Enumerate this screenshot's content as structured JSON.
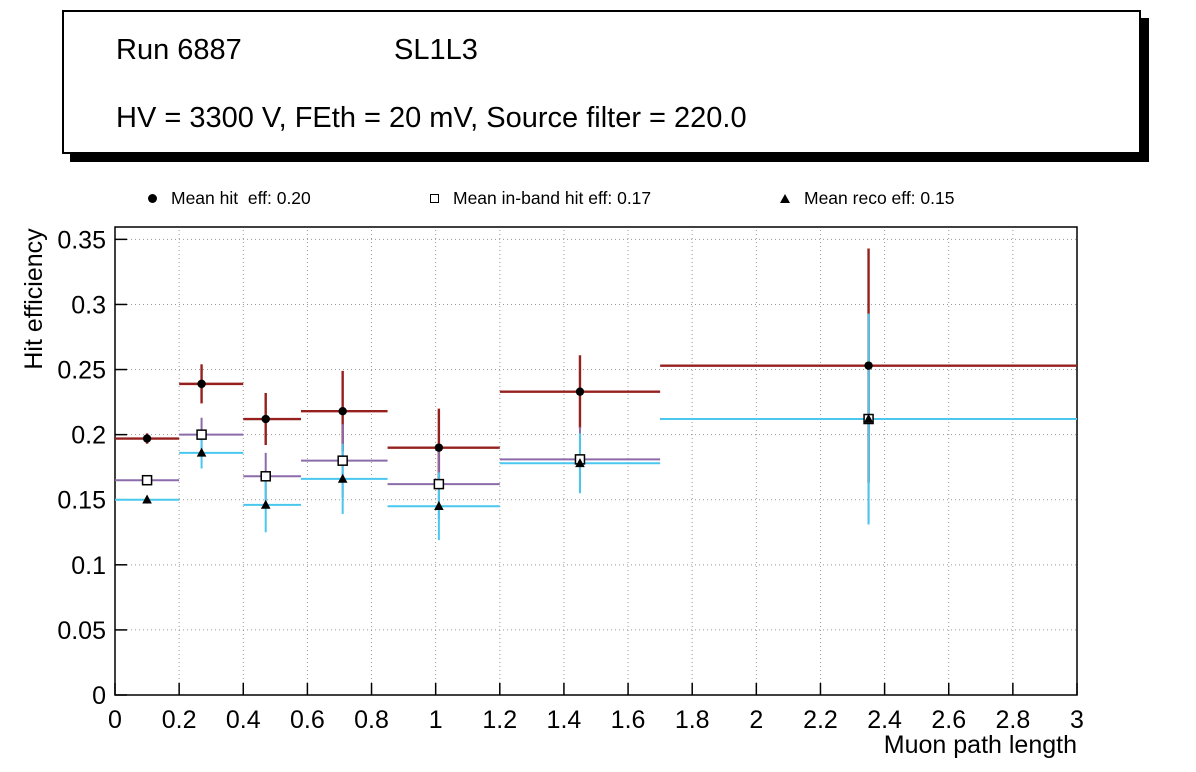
{
  "title_box": {
    "run": "Run 6887",
    "layer": "SL1L3",
    "conditions": "HV = 3300 V, FEth = 20 mV, Source filter = 220.0"
  },
  "legend": [
    {
      "marker": "filled-circle",
      "label": "Mean hit  eff: 0.20"
    },
    {
      "marker": "open-square",
      "label": "Mean in-band hit eff: 0.17"
    },
    {
      "marker": "filled-triangle",
      "label": "Mean reco eff: 0.15"
    }
  ],
  "chart_data": {
    "type": "scatter",
    "title": "",
    "xlabel": "Muon path length",
    "ylabel": "Hit efficiency",
    "xlim": [
      0,
      3
    ],
    "ylim": [
      0,
      0.3595
    ],
    "grid": true,
    "grid_style": "dotted",
    "frame_color": "#000000",
    "x_ticks": [
      {
        "v": 0,
        "label": "0"
      },
      {
        "v": 0.2,
        "label": "0.2"
      },
      {
        "v": 0.4,
        "label": "0.4"
      },
      {
        "v": 0.6,
        "label": "0.6"
      },
      {
        "v": 0.8,
        "label": "0.8"
      },
      {
        "v": 1,
        "label": "1"
      },
      {
        "v": 1.2,
        "label": "1.2"
      },
      {
        "v": 1.4,
        "label": "1.4"
      },
      {
        "v": 1.6,
        "label": "1.6"
      },
      {
        "v": 1.8,
        "label": "1.8"
      },
      {
        "v": 2,
        "label": "2"
      },
      {
        "v": 2.2,
        "label": "2.2"
      },
      {
        "v": 2.4,
        "label": "2.4"
      },
      {
        "v": 2.6,
        "label": "2.6"
      },
      {
        "v": 2.8,
        "label": "2.8"
      },
      {
        "v": 3,
        "label": "3"
      }
    ],
    "y_ticks": [
      {
        "v": 0,
        "label": "0"
      },
      {
        "v": 0.05,
        "label": "0.05"
      },
      {
        "v": 0.1,
        "label": "0.1"
      },
      {
        "v": 0.15,
        "label": "0.15"
      },
      {
        "v": 0.2,
        "label": "0.2"
      },
      {
        "v": 0.25,
        "label": "0.25"
      },
      {
        "v": 0.3,
        "label": "0.3"
      },
      {
        "v": 0.35,
        "label": "0.35"
      }
    ],
    "series": [
      {
        "name": "Mean hit eff",
        "mean": 0.2,
        "marker": "filled-circle",
        "marker_color": "#000000",
        "color": "#96201d",
        "line_width": 2.4,
        "points": [
          {
            "x": 0.1,
            "xlow": 0.0,
            "xhigh": 0.2,
            "y": 0.197,
            "yerr": 0.004
          },
          {
            "x": 0.27,
            "xlow": 0.2,
            "xhigh": 0.4,
            "y": 0.239,
            "yerr": 0.015
          },
          {
            "x": 0.47,
            "xlow": 0.4,
            "xhigh": 0.58,
            "y": 0.212,
            "yerr": 0.02
          },
          {
            "x": 0.71,
            "xlow": 0.58,
            "xhigh": 0.85,
            "y": 0.218,
            "yerr": 0.031
          },
          {
            "x": 1.01,
            "xlow": 0.85,
            "xhigh": 1.2,
            "y": 0.19,
            "yerr": 0.03
          },
          {
            "x": 1.45,
            "xlow": 1.2,
            "xhigh": 1.7,
            "y": 0.233,
            "yerr": 0.028
          },
          {
            "x": 2.35,
            "xlow": 1.7,
            "xhigh": 3.0,
            "y": 0.253,
            "yerr": 0.09
          }
        ]
      },
      {
        "name": "Mean in-band hit eff",
        "mean": 0.17,
        "marker": "open-square",
        "marker_color": "#000000",
        "color": "#8c6bab",
        "line_width": 2,
        "points": [
          {
            "x": 0.1,
            "xlow": 0.0,
            "xhigh": 0.2,
            "y": 0.165,
            "yerr": 0.004
          },
          {
            "x": 0.27,
            "xlow": 0.2,
            "xhigh": 0.4,
            "y": 0.2,
            "yerr": 0.013
          },
          {
            "x": 0.47,
            "xlow": 0.4,
            "xhigh": 0.58,
            "y": 0.168,
            "yerr": 0.018
          },
          {
            "x": 0.71,
            "xlow": 0.58,
            "xhigh": 0.85,
            "y": 0.18,
            "yerr": 0.028
          },
          {
            "x": 1.01,
            "xlow": 0.85,
            "xhigh": 1.2,
            "y": 0.162,
            "yerr": 0.027
          },
          {
            "x": 1.45,
            "xlow": 1.2,
            "xhigh": 1.7,
            "y": 0.181,
            "yerr": 0.025
          },
          {
            "x": 2.35,
            "xlow": 1.7,
            "xhigh": 3.0,
            "y": 0.212,
            "yerr": 0.08
          }
        ]
      },
      {
        "name": "Mean reco eff",
        "mean": 0.15,
        "marker": "filled-triangle",
        "marker_color": "#000000",
        "color": "#49c7ef",
        "line_width": 2,
        "points": [
          {
            "x": 0.1,
            "xlow": 0.0,
            "xhigh": 0.2,
            "y": 0.15,
            "yerr": 0.003
          },
          {
            "x": 0.27,
            "xlow": 0.2,
            "xhigh": 0.4,
            "y": 0.186,
            "yerr": 0.012
          },
          {
            "x": 0.47,
            "xlow": 0.4,
            "xhigh": 0.58,
            "y": 0.146,
            "yerr": 0.021
          },
          {
            "x": 0.71,
            "xlow": 0.58,
            "xhigh": 0.85,
            "y": 0.166,
            "yerr": 0.027
          },
          {
            "x": 1.01,
            "xlow": 0.85,
            "xhigh": 1.2,
            "y": 0.145,
            "yerr": 0.026
          },
          {
            "x": 1.45,
            "xlow": 1.2,
            "xhigh": 1.7,
            "y": 0.178,
            "yerr": 0.023
          },
          {
            "x": 2.35,
            "xlow": 1.7,
            "xhigh": 3.0,
            "y": 0.212,
            "yerr": 0.081
          }
        ]
      }
    ]
  }
}
